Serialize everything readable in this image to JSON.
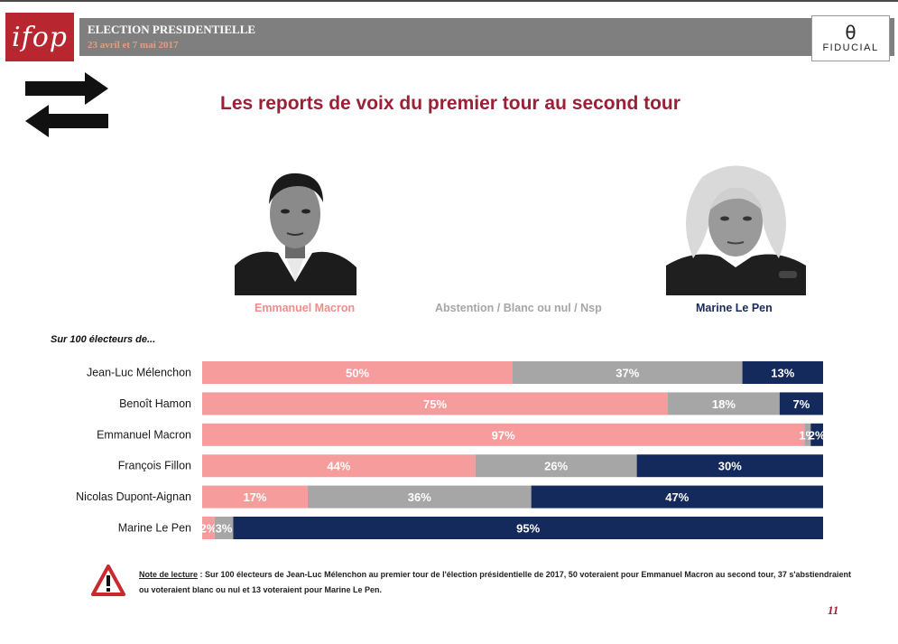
{
  "header": {
    "logo_left": "ifop",
    "title": "ELECTION PRESIDENTIELLE",
    "dates": "23 avril et 7 mai 2017",
    "logo_right_mark": "θ",
    "logo_right": "FIDUCIAL"
  },
  "icons": {
    "arrows": "swap-arrows-icon",
    "warning": "warning-icon"
  },
  "colors": {
    "macron": "#f79c9c",
    "abstention": "#a6a6a6",
    "lepen": "#14295c",
    "title": "#9c1f35"
  },
  "legend": {
    "macron": "Emmanuel Macron",
    "abstention": "Abstention / Blanc ou nul / Nsp",
    "lepen": "Marine Le Pen"
  },
  "chart_data": {
    "type": "bar",
    "orientation": "horizontal-stacked-100",
    "title": "Les reports de voix du premier tour au second tour",
    "subtitle": "Sur 100 électeurs de...",
    "categories": [
      "Jean-Luc Mélenchon",
      "Benoît Hamon",
      "Emmanuel Macron",
      "François Fillon",
      "Nicolas Dupont-Aignan",
      "Marine Le Pen"
    ],
    "series": [
      {
        "name": "Emmanuel Macron",
        "values": [
          50,
          75,
          97,
          44,
          17,
          2
        ]
      },
      {
        "name": "Abstention / Blanc ou nul / Nsp",
        "values": [
          37,
          18,
          1,
          26,
          36,
          3
        ]
      },
      {
        "name": "Marine Le Pen",
        "values": [
          13,
          7,
          2,
          30,
          47,
          95
        ]
      }
    ],
    "xlim": [
      0,
      100
    ]
  },
  "note": {
    "lead": "Note de lecture",
    "text": " : Sur 100 électeurs de Jean-Luc Mélenchon au premier tour de l'élection présidentielle de 2017, 50 voteraient pour Emmanuel Macron au second tour, 37 s'abstiendraient ou voteraient blanc ou nul et 13 voteraient pour Marine Le Pen."
  },
  "page_number": "11"
}
